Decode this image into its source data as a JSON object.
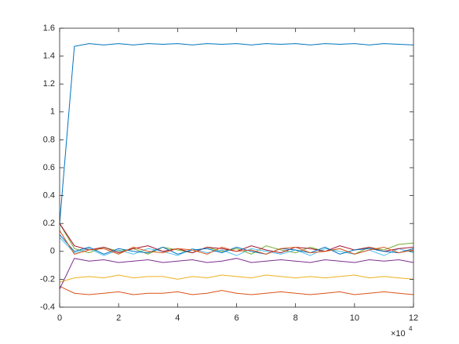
{
  "chart_data": {
    "type": "line",
    "x": [
      0,
      0.5,
      1,
      1.5,
      2,
      2.5,
      3,
      3.5,
      4,
      4.5,
      5,
      5.5,
      6,
      6.5,
      7,
      7.5,
      8,
      8.5,
      9,
      9.5,
      10,
      10.5,
      11,
      11.5,
      12
    ],
    "x_multiplier": "×10",
    "x_exponent": "4",
    "xlim": [
      0,
      12
    ],
    "xticks": [
      0,
      2,
      4,
      6,
      8,
      10,
      12
    ],
    "ylim": [
      -0.4,
      1.6
    ],
    "yticks": [
      -0.4,
      -0.2,
      0,
      0.2,
      0.4,
      0.6,
      0.8,
      1,
      1.2,
      1.4,
      1.6
    ],
    "box": true,
    "series": [
      {
        "color": "#0072BD",
        "values": [
          0.2,
          1.47,
          1.49,
          1.48,
          1.49,
          1.48,
          1.49,
          1.485,
          1.49,
          1.48,
          1.49,
          1.485,
          1.49,
          1.48,
          1.49,
          1.485,
          1.49,
          1.48,
          1.49,
          1.485,
          1.49,
          1.48,
          1.49,
          1.485,
          1.48
        ]
      },
      {
        "color": "#D95319",
        "values": [
          -0.25,
          -0.3,
          -0.31,
          -0.3,
          -0.29,
          -0.31,
          -0.3,
          -0.3,
          -0.29,
          -0.31,
          -0.3,
          -0.28,
          -0.3,
          -0.31,
          -0.3,
          -0.29,
          -0.3,
          -0.31,
          -0.3,
          -0.29,
          -0.31,
          -0.3,
          -0.29,
          -0.3,
          -0.31
        ]
      },
      {
        "color": "#EDB120",
        "values": [
          -0.22,
          -0.19,
          -0.18,
          -0.19,
          -0.17,
          -0.19,
          -0.18,
          -0.18,
          -0.2,
          -0.18,
          -0.19,
          -0.17,
          -0.18,
          -0.19,
          -0.17,
          -0.18,
          -0.19,
          -0.18,
          -0.19,
          -0.18,
          -0.17,
          -0.19,
          -0.18,
          -0.19,
          -0.2
        ]
      },
      {
        "color": "#7E2F8E",
        "values": [
          -0.27,
          -0.05,
          -0.07,
          -0.06,
          -0.08,
          -0.07,
          -0.06,
          -0.08,
          -0.07,
          -0.06,
          -0.08,
          -0.07,
          -0.05,
          -0.08,
          -0.07,
          -0.06,
          -0.07,
          -0.08,
          -0.06,
          -0.07,
          -0.08,
          -0.06,
          -0.07,
          -0.06,
          -0.08
        ]
      },
      {
        "color": "#77AC30",
        "values": [
          0.2,
          0.02,
          -0.01,
          0.03,
          0,
          0.02,
          -0.02,
          0.03,
          0.01,
          -0.01,
          0.03,
          0,
          0.02,
          -0.02,
          0.04,
          0.01,
          -0.01,
          0.03,
          0,
          0.02,
          -0.02,
          0.03,
          0.01,
          0.05,
          0.06
        ]
      },
      {
        "color": "#4DBEEE",
        "values": [
          0.1,
          -0.01,
          0.02,
          -0.03,
          0.01,
          -0.02,
          0.02,
          0,
          -0.03,
          0.02,
          -0.01,
          0.01,
          -0.03,
          0.02,
          0,
          -0.02,
          0.01,
          -0.03,
          0.02,
          0,
          -0.02,
          0.01,
          -0.03,
          0.02,
          -0.01
        ]
      },
      {
        "color": "#A2142F",
        "values": [
          0.2,
          0.04,
          0.01,
          0.03,
          -0.01,
          0.02,
          0.04,
          0,
          0.02,
          -0.01,
          0.03,
          0.02,
          0,
          0.04,
          0.01,
          -0.01,
          0.03,
          0.02,
          0,
          0.04,
          0.01,
          0.03,
          0,
          0.02,
          0.03
        ]
      },
      {
        "color": "#0072BD",
        "values": [
          0.12,
          0,
          0.03,
          -0.02,
          0.02,
          0,
          -0.01,
          0.03,
          -0.02,
          0.01,
          0.02,
          -0.01,
          0.03,
          0,
          -0.02,
          0.02,
          0.01,
          -0.01,
          0.03,
          -0.02,
          0.01,
          0.02,
          0,
          -0.01,
          0.02
        ]
      },
      {
        "color": "#D95319",
        "values": [
          0.15,
          -0.02,
          0.01,
          0.02,
          -0.02,
          0.03,
          0,
          -0.01,
          0.02,
          0.01,
          -0.02,
          0.03,
          0,
          0.01,
          -0.02,
          0.02,
          0.03,
          -0.01,
          0,
          0.02,
          -0.02,
          0.01,
          0.03,
          -0.01,
          0.01
        ]
      }
    ]
  }
}
